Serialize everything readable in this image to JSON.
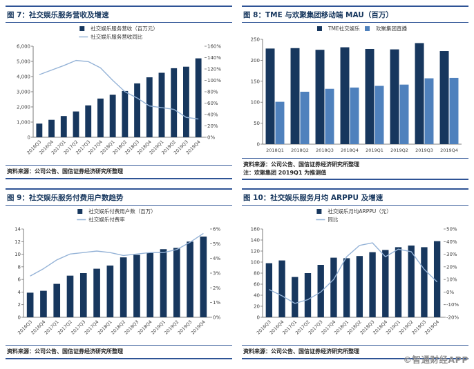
{
  "page": {
    "watermark": "©智通财经APP"
  },
  "colors": {
    "bar_primary": "#17375E",
    "bar_secondary": "#4F81BD",
    "line": "#95B3D7",
    "rule": "#2E5395",
    "title_text": "#17375E",
    "axis_text": "#404040"
  },
  "panels": [
    {
      "title": "图 7：社交娱乐服务营收及增速",
      "source": "资料来源：公司公告、国信证券经济研究所整理",
      "note": ""
    },
    {
      "title": "图 8：TME 与欢聚集团移动端 MAU（百万）",
      "source": "资料来源：公司公告、国信证券经济研究所整理",
      "note": "注：欢聚集团 2019Q1 为推测值"
    },
    {
      "title": "图 9：社交娱乐服务付费用户数趋势",
      "source": "资料来源：公司公告、国信证券经济研究所整理",
      "note": ""
    },
    {
      "title": "图 10：社交娱乐服务月均 ARPPU 及增速",
      "source": "资料来源：公司公告、国信证券经济研究所整理",
      "note": ""
    }
  ],
  "chart_data": [
    {
      "type": "bar",
      "title": "社交娱乐服务营收及增速",
      "categories": [
        "2016Q3",
        "2016Q4",
        "2017Q1",
        "2017Q2",
        "2017Q3",
        "2017Q4",
        "2018Q1",
        "2018Q2",
        "2018Q3",
        "2018Q4",
        "2019Q1",
        "2019Q2",
        "2019Q3",
        "2019Q4"
      ],
      "series": [
        {
          "name": "社交娱乐服务营收（百万元）",
          "kind": "bar",
          "axis": "left",
          "color": "#17375E",
          "values": [
            900,
            1150,
            1400,
            1700,
            2100,
            2550,
            2800,
            3050,
            3550,
            3950,
            4250,
            4550,
            4650,
            5200
          ]
        },
        {
          "name": "社交娱乐服务营收同比",
          "kind": "line",
          "axis": "right",
          "color": "#95B3D7",
          "values": [
            110,
            118,
            126,
            135,
            133,
            122,
            100,
            80,
            69,
            55,
            52,
            49,
            35,
            32
          ]
        }
      ],
      "y_left": {
        "min": 0,
        "max": 6000,
        "step": 1000,
        "thousands": true
      },
      "y_right": {
        "min": 0,
        "max": 160,
        "step": 20,
        "suffix": "%"
      },
      "legend_rows": [
        [
          0
        ],
        [
          1
        ]
      ],
      "grid": false,
      "legend_position": "top"
    },
    {
      "type": "bar",
      "title": "TME 与欢聚集团移动端 MAU（百万）",
      "categories": [
        "2018Q1",
        "2018Q2",
        "2018Q3",
        "2018Q4",
        "2019Q1",
        "2019Q2",
        "2019Q3",
        "2019Q4"
      ],
      "series": [
        {
          "name": "TME社交娱乐",
          "kind": "bar",
          "axis": "left",
          "color": "#17375E",
          "values": [
            228,
            229,
            225,
            231,
            227,
            226,
            241,
            222
          ]
        },
        {
          "name": "欢聚集团直播",
          "kind": "bar",
          "axis": "left",
          "color": "#4F81BD",
          "values": [
            101,
            125,
            132,
            135,
            139,
            142,
            157,
            158
          ]
        }
      ],
      "y_left": {
        "min": 0,
        "max": 250,
        "step": 50
      },
      "legend_rows": [
        [
          0,
          1
        ]
      ],
      "grid": false,
      "legend_position": "top"
    },
    {
      "type": "bar",
      "title": "社交娱乐服务付费用户数趋势",
      "categories": [
        "2016Q3",
        "2016Q4",
        "2017Q1",
        "2017Q2",
        "2017Q3",
        "2017Q4",
        "2018Q1",
        "2018Q2",
        "2018Q3",
        "2018Q4",
        "2019Q1",
        "2019Q2",
        "2019Q3",
        "2019Q4"
      ],
      "series": [
        {
          "name": "社交娱乐付费用户数（百万）",
          "kind": "bar",
          "axis": "left",
          "color": "#17375E",
          "values": [
            3.9,
            4.2,
            5.3,
            6.6,
            7.0,
            7.7,
            8.2,
            9.5,
            9.9,
            10.2,
            10.8,
            11.0,
            12.0,
            12.8
          ]
        },
        {
          "name": "社交娱乐付费率",
          "kind": "line",
          "axis": "right",
          "color": "#95B3D7",
          "values": [
            2.8,
            3.3,
            3.9,
            4.3,
            4.4,
            4.5,
            4.4,
            4.2,
            4.3,
            4.4,
            4.4,
            4.6,
            5.1,
            5.7
          ]
        }
      ],
      "y_left": {
        "min": 0,
        "max": 14,
        "step": 2
      },
      "y_right": {
        "min": 0,
        "max": 6,
        "step": 1,
        "suffix": "%"
      },
      "legend_rows": [
        [
          0
        ],
        [
          1
        ]
      ],
      "grid": false,
      "legend_position": "top"
    },
    {
      "type": "bar",
      "title": "社交娱乐服务月均 ARPPU 及增速",
      "categories": [
        "2016Q3",
        "2016Q4",
        "2017Q1",
        "2017Q2",
        "2017Q3",
        "2017Q4",
        "2018Q1",
        "2018Q2",
        "2018Q3",
        "2018Q4",
        "2019Q1",
        "2019Q2",
        "2019Q3",
        "2019Q4"
      ],
      "series": [
        {
          "name": "社交娱乐月均ARPPU（元）",
          "kind": "bar",
          "axis": "left",
          "color": "#17375E",
          "values": [
            98,
            103,
            73,
            80,
            95,
            108,
            107,
            111,
            118,
            122,
            127,
            130,
            127,
            138
          ]
        },
        {
          "name": "同比",
          "kind": "line",
          "axis": "right",
          "color": "#95B3D7",
          "values": [
            2,
            -3,
            -9,
            -6,
            0,
            10,
            28,
            37,
            39,
            28,
            34,
            32,
            18,
            8
          ]
        }
      ],
      "y_left": {
        "min": 0,
        "max": 160,
        "step": 20
      },
      "y_right": {
        "min": -20,
        "max": 50,
        "step": 10,
        "suffix": "%"
      },
      "legend_rows": [
        [
          0
        ],
        [
          1
        ]
      ],
      "grid": false,
      "legend_position": "top"
    }
  ]
}
